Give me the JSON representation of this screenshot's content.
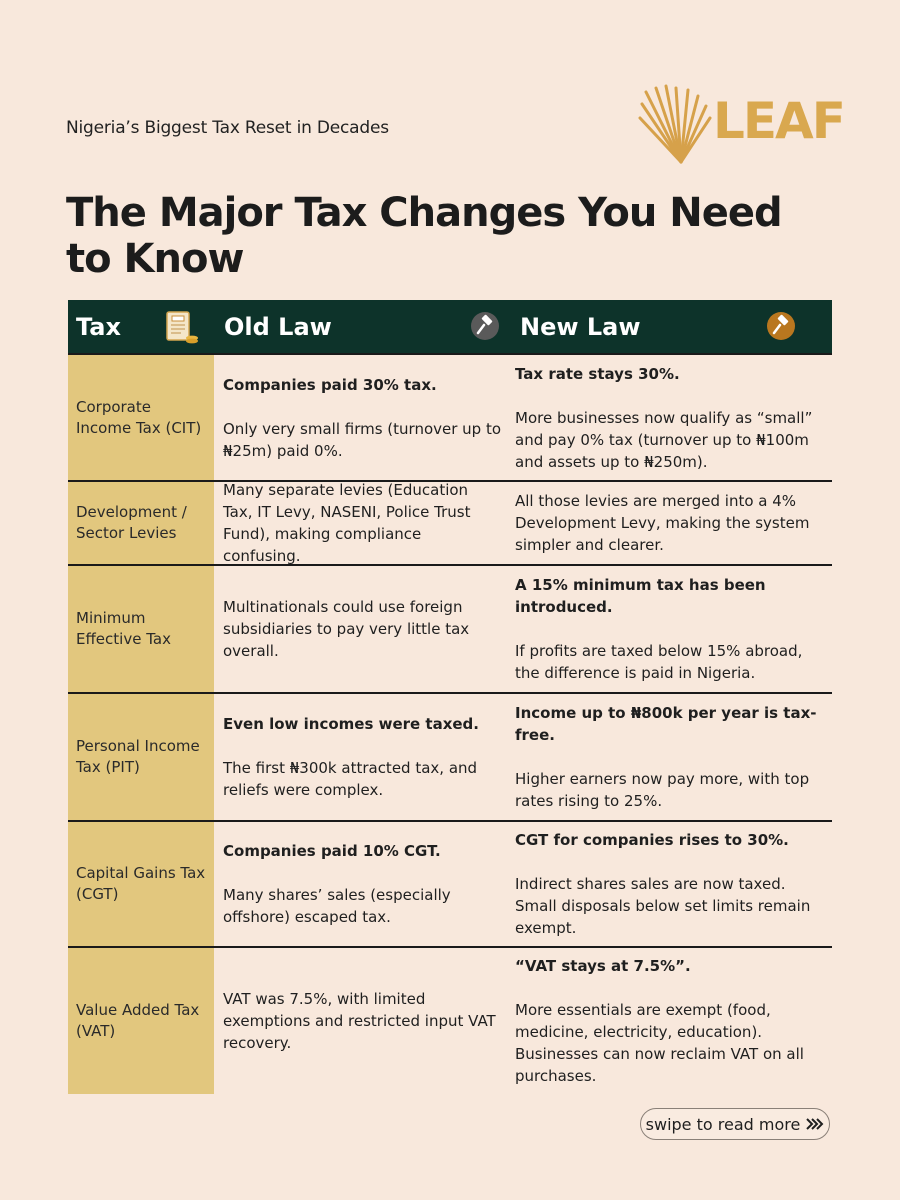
{
  "header": {
    "subtitle": "Nigeria’s Biggest Tax Reset in Decades",
    "logo_text": "LEAF",
    "title": "The Major Tax Changes You Need to Know"
  },
  "table": {
    "columns": [
      "Tax",
      "Old Law",
      "New Law"
    ],
    "icons": [
      "tax-document-icon",
      "gavel-icon",
      "gavel-icon"
    ],
    "rows": [
      {
        "tax": "Corporate Income Tax (CIT)",
        "old_bold": "Companies paid 30% tax.",
        "old_text": "Only very small firms (turnover up to ₦25m) paid 0%.",
        "new_bold": "Tax rate stays 30%.",
        "new_text": "More businesses now qualify as “small” and pay 0% tax (turnover up to ₦100m and assets up to ₦250m)."
      },
      {
        "tax": "Development / Sector Levies",
        "old_bold": "",
        "old_text": "Many separate levies (Education Tax, IT Levy, NASENI, Police Trust Fund), making compliance confusing.",
        "new_bold": "",
        "new_text": "All those levies are merged into a 4% Development Levy, making the system simpler and clearer."
      },
      {
        "tax": "Minimum Effective Tax",
        "old_bold": "",
        "old_text": "Multinationals could use foreign subsidiaries to pay very little tax overall.",
        "new_bold": "A 15% minimum tax has been introduced.",
        "new_text": "If profits are taxed below 15% abroad, the difference is paid in Nigeria."
      },
      {
        "tax": "Personal Income Tax (PIT)",
        "old_bold": "Even low incomes were taxed.",
        "old_text": "The first ₦300k attracted tax, and reliefs were complex.",
        "new_bold": "Income up to ₦800k per year is tax-free.",
        "new_text": "Higher earners now pay more, with top rates rising to 25%."
      },
      {
        "tax": "Capital Gains Tax (CGT)",
        "old_bold": "Companies paid 10% CGT.",
        "old_text": "Many shares’ sales (especially offshore) escaped tax.",
        "new_bold": "CGT for companies rises to 30%.",
        "new_text": "Indirect shares sales are now taxed. Small disposals below set limits remain exempt."
      },
      {
        "tax": "Value Added Tax (VAT)",
        "old_bold": "",
        "old_text": "VAT was 7.5%, with limited exemptions and restricted input VAT recovery.",
        "new_bold": "“VAT stays at 7.5%”.",
        "new_text": "More essentials are exempt (food, medicine, electricity, education). Businesses can now reclaim VAT on all purchases."
      }
    ]
  },
  "footer": {
    "swipe_label": "swipe to read more",
    "swipe_icon": "chevrons-right-icon"
  },
  "colors": {
    "background": "#f8e8dc",
    "header_bg": "#0d332a",
    "tax_column_bg": "#e2c77e",
    "brand_gold": "#d9a84f"
  }
}
